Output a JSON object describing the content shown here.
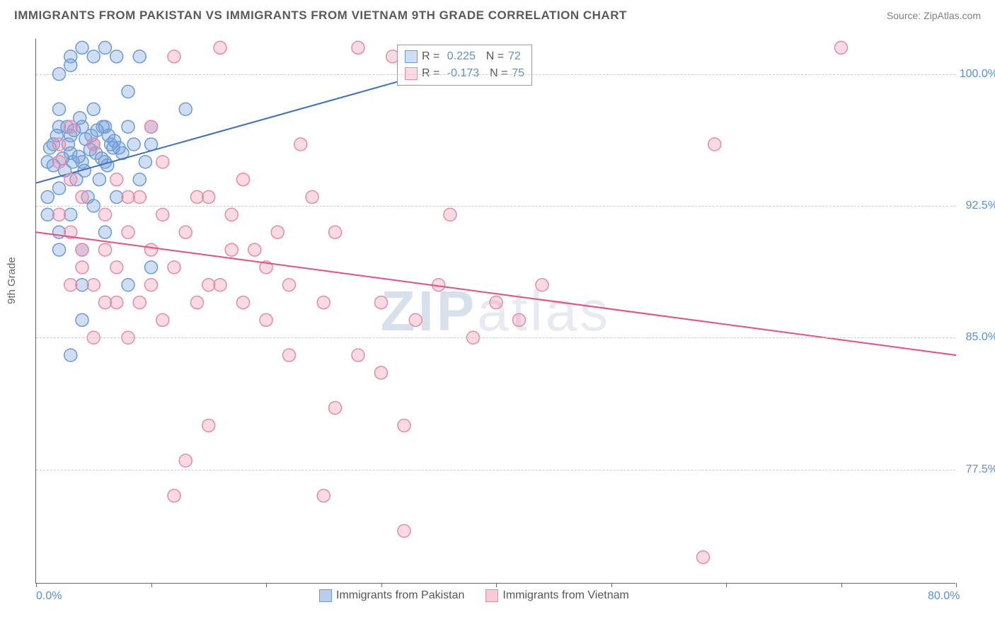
{
  "header": {
    "title": "IMMIGRANTS FROM PAKISTAN VS IMMIGRANTS FROM VIETNAM 9TH GRADE CORRELATION CHART",
    "source": "Source: ZipAtlas.com"
  },
  "chart": {
    "type": "scatter",
    "ylabel": "9th Grade",
    "watermark": "ZIPatlas",
    "xlim": [
      0,
      80
    ],
    "ylim": [
      71,
      102
    ],
    "yticks": [
      {
        "v": 100.0,
        "label": "100.0%"
      },
      {
        "v": 92.5,
        "label": "92.5%"
      },
      {
        "v": 85.0,
        "label": "85.0%"
      },
      {
        "v": 77.5,
        "label": "77.5%"
      }
    ],
    "xticks": [
      {
        "v": 0,
        "label": "0.0%"
      },
      {
        "v": 10,
        "label": ""
      },
      {
        "v": 20,
        "label": ""
      },
      {
        "v": 30,
        "label": ""
      },
      {
        "v": 40,
        "label": ""
      },
      {
        "v": 50,
        "label": ""
      },
      {
        "v": 60,
        "label": ""
      },
      {
        "v": 70,
        "label": ""
      },
      {
        "v": 80,
        "label": "80.0%"
      }
    ],
    "grid_color": "#cccccc",
    "axis_color": "#666666",
    "background_color": "#ffffff",
    "marker_radius": 9,
    "marker_stroke_width": 1.5,
    "line_width": 2,
    "series": [
      {
        "name": "Immigrants from Pakistan",
        "fill": "rgba(120,160,220,0.35)",
        "stroke": "#6a9bd8",
        "line_color": "#3b6fc4",
        "R": "0.225",
        "N": "72",
        "trend": {
          "x1": 0,
          "y1": 93.8,
          "x2": 42,
          "y2": 101.5
        },
        "points": [
          [
            1,
            95
          ],
          [
            1.5,
            96
          ],
          [
            2,
            97
          ],
          [
            2,
            98
          ],
          [
            2.5,
            94.5
          ],
          [
            3,
            95.5
          ],
          [
            3,
            96.5
          ],
          [
            3.5,
            94
          ],
          [
            4,
            95
          ],
          [
            4,
            97
          ],
          [
            4.5,
            93
          ],
          [
            5,
            96
          ],
          [
            5,
            98
          ],
          [
            5.5,
            94
          ],
          [
            6,
            95
          ],
          [
            6,
            97
          ],
          [
            6.5,
            96
          ],
          [
            7,
            101
          ],
          [
            7,
            93
          ],
          [
            7.5,
            95.5
          ],
          [
            8,
            97
          ],
          [
            8,
            99
          ],
          [
            8.5,
            96
          ],
          [
            9,
            94
          ],
          [
            9,
            101
          ],
          [
            9.5,
            95
          ],
          [
            10,
            97
          ],
          [
            10,
            96
          ],
          [
            3,
            101
          ],
          [
            4,
            101.5
          ],
          [
            1,
            93
          ],
          [
            2,
            93.5
          ],
          [
            1.5,
            94.8
          ],
          [
            2.8,
            96
          ],
          [
            3.2,
            95
          ],
          [
            3.8,
            97.5
          ],
          [
            4.2,
            94.5
          ],
          [
            4.8,
            96.5
          ],
          [
            5.2,
            95.5
          ],
          [
            5.8,
            97
          ],
          [
            6.2,
            94.8
          ],
          [
            6.8,
            96.2
          ],
          [
            7.2,
            95.8
          ],
          [
            2,
            91
          ],
          [
            3,
            92
          ],
          [
            4,
            90
          ],
          [
            5,
            92.5
          ],
          [
            6,
            91
          ],
          [
            4,
            88
          ],
          [
            8,
            88
          ],
          [
            2,
            100
          ],
          [
            3,
            100.5
          ],
          [
            5,
            101
          ],
          [
            6,
            101.5
          ],
          [
            1.2,
            95.8
          ],
          [
            1.8,
            96.5
          ],
          [
            2.3,
            95.2
          ],
          [
            2.7,
            97
          ],
          [
            3.3,
            96.8
          ],
          [
            3.7,
            95.3
          ],
          [
            4.3,
            96.3
          ],
          [
            4.7,
            95.7
          ],
          [
            5.3,
            96.8
          ],
          [
            5.7,
            95.2
          ],
          [
            6.3,
            96.5
          ],
          [
            6.7,
            95.8
          ],
          [
            1,
            92
          ],
          [
            2,
            90
          ],
          [
            3,
            84
          ],
          [
            4,
            86
          ],
          [
            13,
            98
          ],
          [
            10,
            89
          ]
        ]
      },
      {
        "name": "Immigrants from Vietnam",
        "fill": "rgba(240,150,175,0.35)",
        "stroke": "#e88ba5",
        "line_color": "#e94f7a",
        "R": "-0.173",
        "N": "75",
        "trend": {
          "x1": 0,
          "y1": 91.0,
          "x2": 80,
          "y2": 84.0
        },
        "points": [
          [
            2,
            95
          ],
          [
            3,
            94
          ],
          [
            4,
            93
          ],
          [
            5,
            96
          ],
          [
            6,
            92
          ],
          [
            7,
            94
          ],
          [
            8,
            91
          ],
          [
            9,
            93
          ],
          [
            10,
            90
          ],
          [
            11,
            95
          ],
          [
            12,
            101
          ],
          [
            14,
            93
          ],
          [
            15,
            88
          ],
          [
            16,
            101.5
          ],
          [
            17,
            90
          ],
          [
            18,
            94
          ],
          [
            20,
            86
          ],
          [
            22,
            84
          ],
          [
            23,
            96
          ],
          [
            24,
            93
          ],
          [
            25,
            87
          ],
          [
            26,
            91
          ],
          [
            28,
            101.5
          ],
          [
            28,
            84
          ],
          [
            30,
            83
          ],
          [
            30,
            87
          ],
          [
            31,
            101
          ],
          [
            32,
            80
          ],
          [
            33,
            86
          ],
          [
            35,
            88
          ],
          [
            36,
            92
          ],
          [
            38,
            85
          ],
          [
            40,
            87
          ],
          [
            42,
            86
          ],
          [
            10,
            97
          ],
          [
            44,
            88
          ],
          [
            3,
            88
          ],
          [
            5,
            85
          ],
          [
            7,
            89
          ],
          [
            9,
            87
          ],
          [
            11,
            86
          ],
          [
            13,
            78
          ],
          [
            15,
            80
          ],
          [
            4,
            90
          ],
          [
            6,
            87
          ],
          [
            8,
            85
          ],
          [
            2,
            92
          ],
          [
            3,
            91
          ],
          [
            4,
            89
          ],
          [
            5,
            88
          ],
          [
            6,
            90
          ],
          [
            7,
            87
          ],
          [
            8,
            93
          ],
          [
            26,
            81
          ],
          [
            10,
            88
          ],
          [
            11,
            92
          ],
          [
            12,
            89
          ],
          [
            13,
            91
          ],
          [
            14,
            87
          ],
          [
            15,
            93
          ],
          [
            16,
            88
          ],
          [
            17,
            92
          ],
          [
            18,
            87
          ],
          [
            19,
            90
          ],
          [
            20,
            89
          ],
          [
            12,
            76
          ],
          [
            22,
            88
          ],
          [
            21,
            91
          ],
          [
            25,
            76
          ],
          [
            32,
            74
          ],
          [
            58,
            72.5
          ],
          [
            70,
            101.5
          ],
          [
            2,
            96
          ],
          [
            59,
            96
          ],
          [
            3,
            97
          ]
        ]
      }
    ],
    "bottom_legend": [
      {
        "label": "Immigrants from Pakistan",
        "fill": "rgba(120,160,220,0.5)",
        "stroke": "#6a9bd8"
      },
      {
        "label": "Immigrants from Vietnam",
        "fill": "rgba(240,150,175,0.5)",
        "stroke": "#e88ba5"
      }
    ]
  }
}
